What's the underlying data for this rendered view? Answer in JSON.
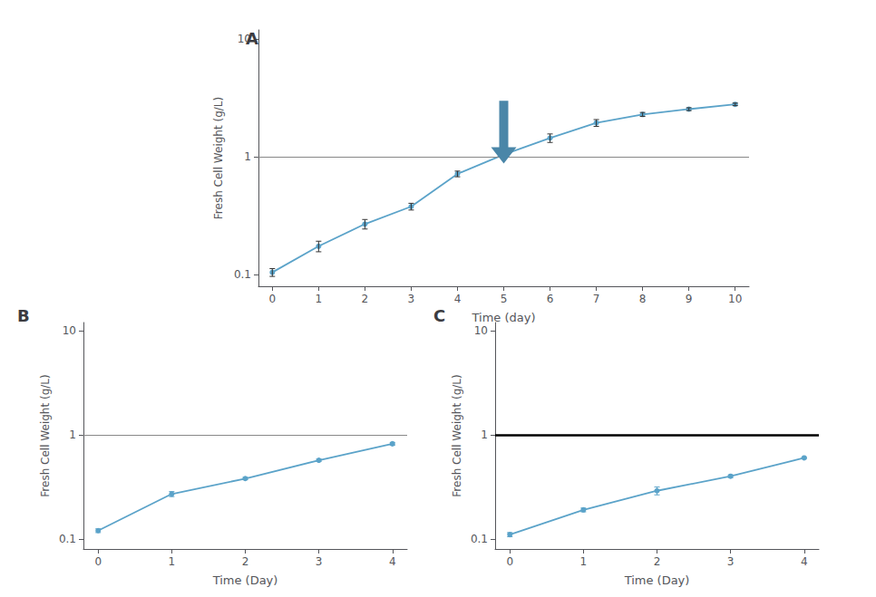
{
  "chart_data": [
    {
      "type": "line",
      "title": "A",
      "xlabel": "Time (day)",
      "ylabel": "Fresh Cell Weight (g/L)",
      "x": [
        0,
        1,
        2,
        3,
        4,
        5,
        6,
        7,
        8,
        9,
        10
      ],
      "series": [
        {
          "values": [
            0.105,
            0.175,
            0.27,
            0.38,
            0.72,
            1.05,
            1.45,
            1.95,
            2.3,
            2.55,
            2.8
          ],
          "yerr": [
            0.008,
            0.018,
            0.025,
            0.025,
            0.04,
            0.0,
            0.12,
            0.13,
            0.09,
            0.07,
            0.07
          ],
          "color": "#5ba3c9",
          "error_color": "#333333",
          "marker": "circle",
          "line_style": "solid"
        }
      ],
      "xlim": [
        -0.3,
        10.3
      ],
      "xticks": [
        0,
        1,
        2,
        3,
        4,
        5,
        6,
        7,
        8,
        9,
        10
      ],
      "ylim": [
        0.08,
        12
      ],
      "yticks": [
        0.1,
        1,
        10
      ],
      "log": "y",
      "grid": false,
      "reference_lines": [
        {
          "y": 1.0,
          "color": "#888888"
        }
      ],
      "annotations": [
        {
          "type": "arrow",
          "x": 5.0,
          "y_from": 3.0,
          "y_to": 0.88,
          "color": "#4a86a8"
        }
      ]
    },
    {
      "type": "line",
      "title": "B",
      "xlabel": "Time (Day)",
      "ylabel": "Fresh Cell Weight (g/L)",
      "x": [
        0,
        1,
        2,
        3,
        4
      ],
      "series": [
        {
          "values": [
            0.12,
            0.27,
            0.38,
            0.57,
            0.82
          ],
          "yerr": [
            0.005,
            0.015,
            0.01,
            0.015,
            0.025
          ],
          "color": "#5ba3c9",
          "error_color": "#5ba3c9",
          "marker": "circle",
          "line_style": "solid"
        }
      ],
      "xlim": [
        -0.2,
        4.2
      ],
      "xticks": [
        0,
        1,
        2,
        3,
        4
      ],
      "ylim": [
        0.08,
        12
      ],
      "yticks": [
        0.1,
        1,
        10
      ],
      "log": "y",
      "grid": false,
      "reference_lines": [
        {
          "y": 1.0,
          "color": "#888888"
        }
      ]
    },
    {
      "type": "line",
      "title": "C",
      "xlabel": "Time (Day)",
      "ylabel": "Fresh Cell Weight (g/L)",
      "x": [
        0,
        1,
        2,
        3,
        4
      ],
      "series": [
        {
          "values": [
            0.11,
            0.19,
            0.29,
            0.4,
            0.6
          ],
          "yerr": [
            0.005,
            0.008,
            0.025,
            0.012,
            0.01
          ],
          "color": "#5ba3c9",
          "error_color": "#5ba3c9",
          "marker": "circle",
          "line_style": "solid"
        }
      ],
      "xlim": [
        -0.2,
        4.2
      ],
      "xticks": [
        0,
        1,
        2,
        3,
        4
      ],
      "ylim": [
        0.08,
        12
      ],
      "yticks": [
        0.1,
        1,
        10
      ],
      "log": "y",
      "grid": false,
      "reference_lines": [
        {
          "y": 1.0,
          "color": "#000000"
        }
      ]
    }
  ]
}
